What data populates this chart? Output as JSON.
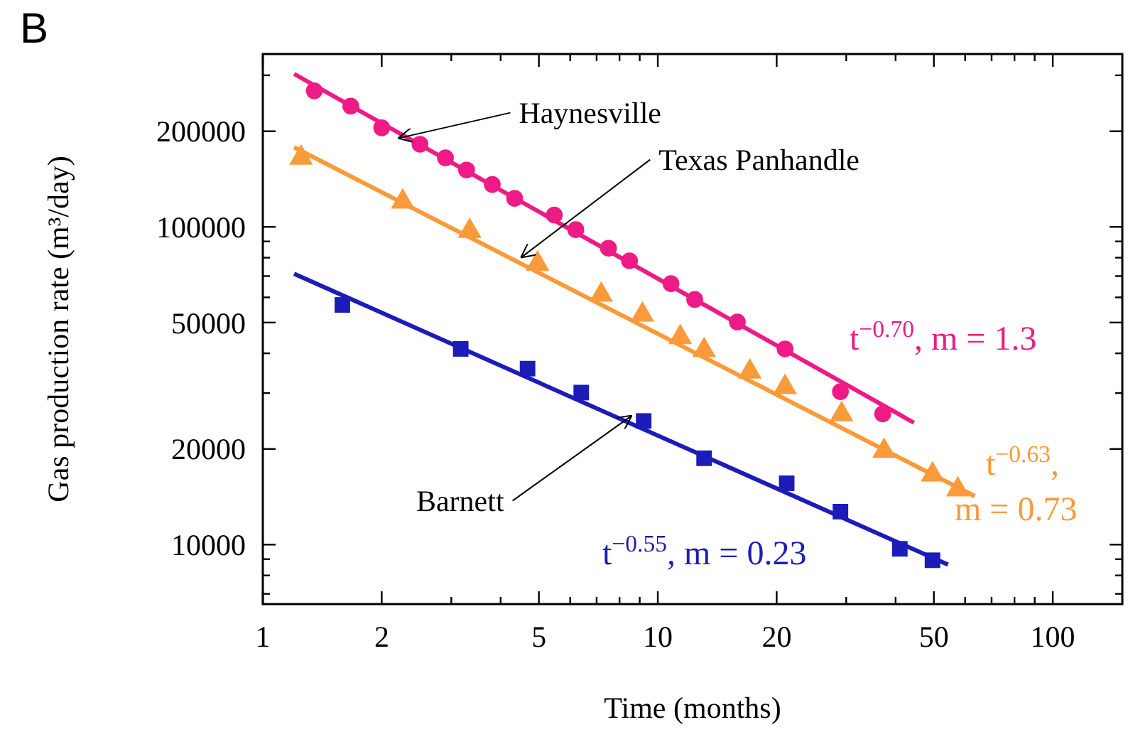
{
  "chart_data": {
    "type": "scatter",
    "title": "B",
    "xlabel": "Time (months)",
    "ylabel": "Gas production rate (m³/day)",
    "log": "xy",
    "grid": false,
    "xlim": [
      1,
      150
    ],
    "ylim": [
      6500,
      350000
    ],
    "xticks": [
      1,
      2,
      {
        "value": 3,
        "label": null
      },
      {
        "value": 4,
        "label": null
      },
      5,
      {
        "value": 6,
        "label": null
      },
      {
        "value": 7,
        "label": null
      },
      {
        "value": 8,
        "label": null
      },
      {
        "value": 9,
        "label": null
      },
      10,
      20,
      {
        "value": 30,
        "label": null
      },
      {
        "value": 40,
        "label": null
      },
      50,
      {
        "value": 60,
        "label": null
      },
      {
        "value": 70,
        "label": null
      },
      {
        "value": 80,
        "label": null
      },
      {
        "value": 90,
        "label": null
      },
      100
    ],
    "yticks": [
      {
        "value": 7000,
        "label": null
      },
      {
        "value": 8000,
        "label": null
      },
      {
        "value": 9000,
        "label": null
      },
      10000,
      20000,
      {
        "value": 30000,
        "label": null
      },
      {
        "value": 40000,
        "label": null
      },
      50000,
      {
        "value": 60000,
        "label": null
      },
      {
        "value": 70000,
        "label": null
      },
      {
        "value": 80000,
        "label": null
      },
      {
        "value": 90000,
        "label": null
      },
      100000,
      200000,
      {
        "value": 300000,
        "label": null
      }
    ],
    "series": [
      {
        "marker": "circle",
        "color": "#ee1a85",
        "x": [
          1.35,
          1.67,
          2.0,
          2.5,
          2.9,
          3.28,
          3.81,
          4.34,
          5.47,
          6.2,
          7.5,
          8.48,
          10.8,
          12.4,
          15.9,
          21.0,
          29.0,
          37.1
        ],
        "values": [
          268000,
          240000,
          205000,
          182000,
          165000,
          151000,
          136000,
          123000,
          109000,
          98000,
          85700,
          78200,
          66300,
          59100,
          50200,
          41300,
          30300,
          25800
        ]
      },
      {
        "type": "line",
        "marker": "none",
        "color": "#ee1a85",
        "x": [
          1.2,
          44.5
        ],
        "values": [
          303000,
          24200
        ]
      },
      {
        "marker": "triangle",
        "color": "#fb9a3a",
        "x": [
          1.25,
          2.26,
          3.34,
          4.96,
          7.19,
          9.14,
          11.4,
          13.1,
          17.1,
          21.0,
          29.2,
          37.4,
          49.6,
          57.5
        ],
        "values": [
          165000,
          120000,
          97000,
          76500,
          61100,
          52900,
          44900,
          40900,
          35000,
          31300,
          25700,
          19700,
          16600,
          14900
        ]
      },
      {
        "type": "line",
        "marker": "none",
        "color": "#fb9a3a",
        "x": [
          1.2,
          63.5
        ],
        "values": [
          178000,
          14200
        ]
      },
      {
        "marker": "square",
        "color": "#1c1cb8",
        "x": [
          1.59,
          3.17,
          4.68,
          6.4,
          9.21,
          13.1,
          21.2,
          29.0,
          41.0,
          49.6
        ],
        "values": [
          56800,
          41300,
          35800,
          30100,
          24500,
          18700,
          15600,
          12700,
          9700,
          8930
        ]
      },
      {
        "type": "line",
        "marker": "none",
        "color": "#1c1cb8",
        "x": [
          1.2,
          54.3
        ],
        "values": [
          71200,
          8650
        ]
      }
    ],
    "annotations": [
      {
        "text": "Haynesville",
        "x": 2.2,
        "y": 190000
      },
      {
        "text": "Texas Panhandle",
        "x": 4.5,
        "y": 80000
      },
      {
        "text": "Barnett",
        "x": 8.6,
        "y": 25500
      },
      "t$^{−0.70}$, m = 1.3",
      "t$^{−0.63}$,",
      "m = 0.73",
      "t$^{−0.55}$, m = 0.23"
    ]
  }
}
